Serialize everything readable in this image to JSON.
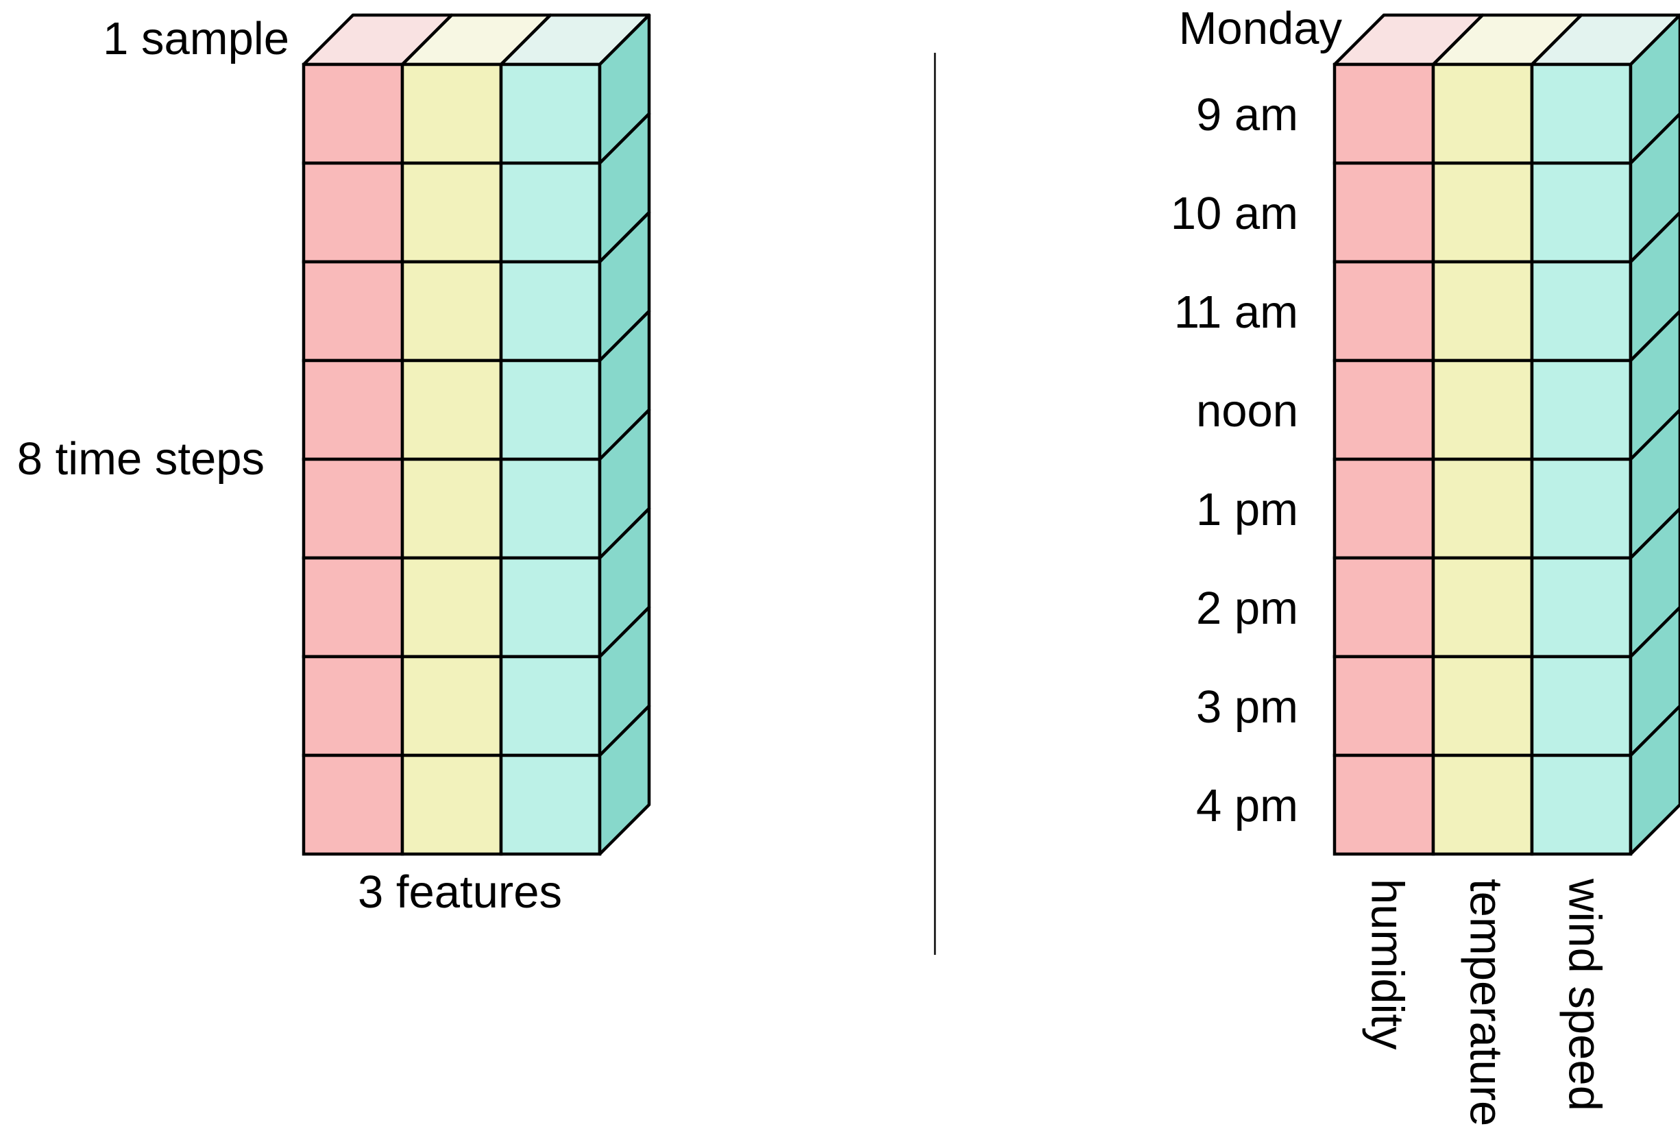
{
  "left_diagram": {
    "sample_label": "1 sample",
    "timesteps_label": "8 time steps",
    "features_label": "3 features",
    "rows": 8,
    "columns": 3
  },
  "right_diagram": {
    "day_label": "Monday",
    "time_labels": [
      "9 am",
      "10 am",
      "11 am",
      "noon",
      "1 pm",
      "2 pm",
      "3 pm",
      "4 pm"
    ],
    "feature_labels": [
      "humidity",
      "temperature",
      "wind speed"
    ],
    "rows": 8,
    "columns": 3
  },
  "colors": {
    "front": [
      "#f9baba",
      "#f2f2bc",
      "#bcf1e7"
    ],
    "top": [
      "#f9e2e2",
      "#f7f7e3",
      "#e3f3ef"
    ],
    "side": "#87d8cb",
    "stroke": "#000000",
    "divider": "#000000"
  }
}
